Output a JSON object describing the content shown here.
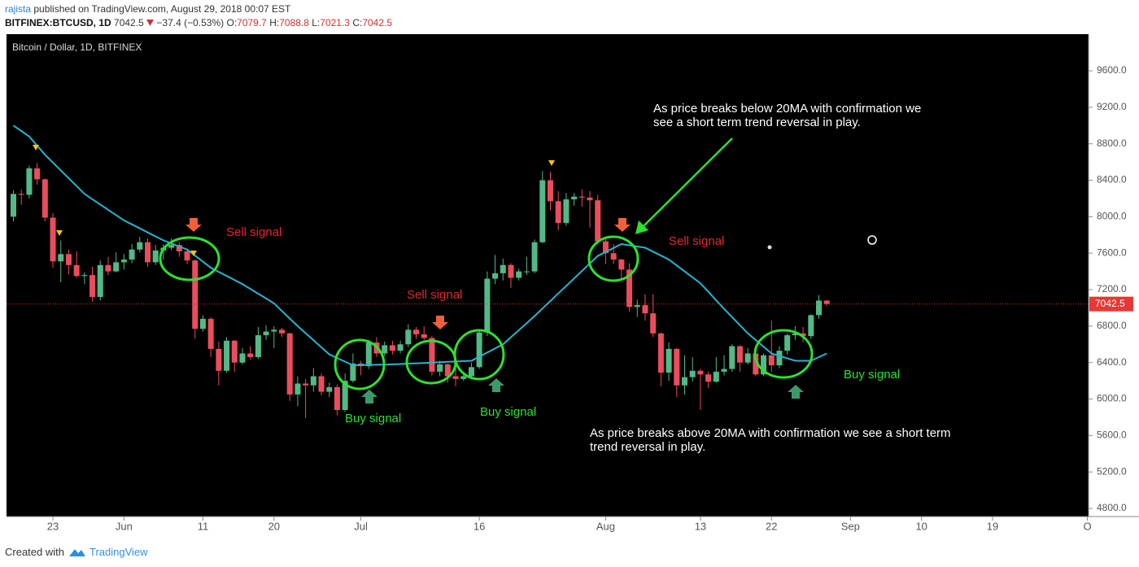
{
  "header": {
    "author": "rajista",
    "published": "published on TradingView.com, August 29, 2018 00:07 EST",
    "symbol": "BITFINEX:BTCUSD, 1D",
    "change": "−37.4 (−0.53%)",
    "labels": {
      "o": "O:",
      "h": "H:",
      "l": "L:",
      "c": "C:"
    }
  },
  "chart_data": {
    "type": "candlestick",
    "title": "Bitcoin / Dollar, 1D, BITFINEX",
    "up_color": "#53b987",
    "down_color": "#eb4d5c",
    "background": "#000000",
    "categories": [
      null,
      null,
      null,
      null,
      null,
      "23",
      null,
      null,
      null,
      null,
      null,
      null,
      null,
      null,
      "Jun",
      null,
      null,
      null,
      null,
      null,
      null,
      null,
      null,
      null,
      "11",
      null,
      null,
      null,
      null,
      null,
      null,
      null,
      null,
      "20",
      null,
      null,
      null,
      null,
      null,
      null,
      null,
      null,
      null,
      null,
      "Jul",
      null,
      null,
      null,
      null,
      null,
      null,
      null,
      null,
      null,
      null,
      null,
      null,
      null,
      null,
      "16",
      null,
      null,
      null,
      null,
      null,
      null,
      null,
      null,
      null,
      null,
      null,
      null,
      null,
      null,
      null,
      "Aug",
      null,
      null,
      null,
      null,
      null,
      null,
      null,
      null,
      null,
      null,
      null,
      "13",
      null,
      null,
      null,
      null,
      null,
      null,
      null,
      null,
      "22",
      null,
      null,
      null,
      null,
      null,
      null,
      null,
      null,
      null,
      "Sep",
      null,
      null,
      null,
      null,
      null,
      null,
      null,
      null,
      "10",
      null,
      null,
      null,
      null,
      null,
      null,
      null,
      null,
      "19",
      null,
      null,
      null,
      null,
      null,
      null,
      null,
      null,
      null,
      null,
      null,
      "O"
    ],
    "open": [
      8000,
      8250,
      8240,
      8530,
      8410,
      7990,
      7510,
      7590,
      7470,
      7350,
      7360,
      7120,
      7470,
      7400,
      7500,
      7530,
      7640,
      7720,
      7500,
      7630,
      7660,
      7690,
      7620,
      7520,
      6770,
      6880,
      6550,
      6310,
      6640,
      6400,
      6500,
      6460,
      6700,
      6740,
      6760,
      6720,
      6050,
      6170,
      6150,
      6250,
      6080,
      6130,
      5880,
      6200,
      6390,
      6360,
      6620,
      6500,
      6590,
      6530,
      6600,
      6760,
      6710,
      6670,
      6300,
      6380,
      6250,
      6220,
      6250,
      6350,
      6730,
      7320,
      7380,
      7470,
      7330,
      7400,
      7400,
      7720,
      8400,
      8170,
      7930,
      8190,
      8220,
      8210,
      8180,
      7730,
      7600,
      7530,
      7420,
      7010,
      7030,
      6940,
      6720,
      6290,
      6550,
      6150,
      6240,
      6310,
      6270,
      6190,
      6300,
      6330,
      6580,
      6400,
      6500,
      6270,
      6480,
      6370,
      6530,
      6700,
      6720,
      6690,
      6920,
      7079.7,
      null,
      null,
      null,
      null,
      null,
      null,
      null,
      null,
      null,
      null,
      null,
      null,
      null,
      null,
      null,
      null,
      null,
      null,
      null,
      null,
      null,
      null,
      null,
      null,
      null,
      null,
      null,
      null,
      null,
      null,
      null,
      null,
      null
    ],
    "high": [
      8290,
      8300,
      8560,
      8590,
      8420,
      8040,
      7740,
      7640,
      7620,
      7390,
      7450,
      7520,
      7560,
      7610,
      7590,
      7700,
      7780,
      7760,
      7690,
      7700,
      7760,
      7720,
      7640,
      7530,
      6920,
      6900,
      6630,
      6680,
      6650,
      6560,
      6580,
      6790,
      6810,
      6800,
      6780,
      6730,
      6250,
      6220,
      6340,
      6280,
      6180,
      6160,
      6280,
      6500,
      6420,
      6650,
      6680,
      6630,
      6640,
      6640,
      6820,
      6790,
      6800,
      6690,
      6420,
      6390,
      6340,
      6280,
      6400,
      6760,
      7400,
      7580,
      7540,
      7490,
      7430,
      7560,
      7750,
      8500,
      8490,
      8280,
      8260,
      8260,
      8300,
      8280,
      8240,
      7770,
      7700,
      7540,
      7490,
      7090,
      7150,
      7150,
      6730,
      6620,
      6560,
      6480,
      6460,
      6330,
      6300,
      6460,
      6480,
      6600,
      6590,
      6560,
      6520,
      6500,
      6860,
      6580,
      6720,
      6800,
      6790,
      6930,
      7140,
      7088.8,
      null,
      null,
      null,
      null,
      null,
      null,
      null,
      null,
      null,
      null,
      null,
      null,
      null,
      null,
      null,
      null,
      null,
      null,
      null,
      null,
      null,
      null,
      null,
      null,
      null,
      null,
      null,
      null,
      null,
      null,
      null,
      null,
      null
    ],
    "low": [
      7950,
      8130,
      8200,
      8350,
      7950,
      7440,
      7280,
      7370,
      7330,
      7260,
      7070,
      7080,
      7360,
      7390,
      7420,
      7490,
      7610,
      7450,
      7470,
      7530,
      7630,
      7560,
      7480,
      6660,
      6740,
      6460,
      6150,
      6290,
      6300,
      6380,
      6430,
      6440,
      6650,
      6560,
      6680,
      5980,
      5920,
      5790,
      6080,
      6040,
      6020,
      5820,
      5860,
      6180,
      6260,
      6330,
      6460,
      6470,
      6490,
      6500,
      6570,
      6660,
      6650,
      6260,
      6250,
      6180,
      6140,
      6200,
      6230,
      6330,
      6690,
      7260,
      7300,
      7220,
      7300,
      7360,
      7380,
      7710,
      8070,
      7850,
      7900,
      8120,
      8110,
      7880,
      7700,
      7480,
      7480,
      7320,
      6960,
      6900,
      6860,
      6680,
      6140,
      6200,
      6020,
      6050,
      6190,
      5880,
      6120,
      6180,
      6260,
      6300,
      6300,
      6380,
      6250,
      6250,
      6300,
      6340,
      6490,
      6650,
      6620,
      6660,
      6880,
      7021.3,
      null,
      null,
      null,
      null,
      null,
      null,
      null,
      null,
      null,
      null,
      null,
      null,
      null,
      null,
      null,
      null,
      null,
      null,
      null,
      null,
      null,
      null,
      null,
      null,
      null,
      null,
      null,
      null,
      null,
      null,
      null,
      null,
      null
    ],
    "close": [
      8250,
      8240,
      8530,
      8410,
      7990,
      7510,
      7590,
      7470,
      7350,
      7360,
      7120,
      7470,
      7400,
      7500,
      7530,
      7640,
      7720,
      7500,
      7630,
      7660,
      7690,
      7620,
      7520,
      6770,
      6880,
      6550,
      6310,
      6640,
      6400,
      6500,
      6460,
      6700,
      6740,
      6760,
      6720,
      6050,
      6170,
      6150,
      6250,
      6080,
      6130,
      5880,
      6200,
      6390,
      6360,
      6620,
      6500,
      6590,
      6530,
      6600,
      6760,
      6710,
      6670,
      6300,
      6380,
      6250,
      6220,
      6250,
      6350,
      6730,
      7320,
      7380,
      7470,
      7330,
      7400,
      7400,
      7720,
      8400,
      8170,
      7930,
      8190,
      8220,
      8210,
      8180,
      7730,
      7600,
      7530,
      7420,
      7010,
      7030,
      6940,
      6720,
      6290,
      6550,
      6150,
      6240,
      6310,
      6270,
      6190,
      6300,
      6330,
      6580,
      6400,
      6500,
      6270,
      6480,
      6370,
      6530,
      6700,
      6720,
      6690,
      6920,
      7080,
      7042.5,
      null,
      null,
      null,
      null,
      null,
      null,
      null,
      null,
      null,
      null,
      null,
      null,
      null,
      null,
      null,
      null,
      null,
      null,
      null,
      null,
      null,
      null,
      null,
      null,
      null,
      null,
      null,
      null,
      null,
      null,
      null,
      null,
      null
    ],
    "moving_average": {
      "color": "#2ab3cf",
      "values": [
        9000,
        8940,
        8880,
        8780,
        8680,
        8594,
        8508,
        8422,
        8336,
        8250,
        8192,
        8134,
        8076,
        8018,
        7960,
        7916,
        7872,
        7828,
        7784,
        7740,
        7707,
        7673,
        7640,
        7573,
        7507,
        7440,
        7395,
        7350,
        7305,
        7260,
        7208,
        7155,
        7103,
        7050,
        6967,
        6883,
        6800,
        6723,
        6645,
        6568,
        6490,
        6450,
        6410,
        6370,
        6372,
        6374,
        6376,
        6378,
        6380,
        6384,
        6388,
        6392,
        6396,
        6400,
        6404,
        6408,
        6412,
        6416,
        6420,
        6465,
        6510,
        6555,
        6600,
        6678,
        6755,
        6833,
        6910,
        6993,
        7075,
        7158,
        7240,
        7323,
        7405,
        7488,
        7570,
        7613,
        7657,
        7700,
        7687,
        7673,
        7660,
        7617,
        7573,
        7530,
        7465,
        7400,
        7335,
        7270,
        7177,
        7083,
        6990,
        6900,
        6810,
        6720,
        6647,
        6573,
        6500,
        6473,
        6447,
        6420,
        6420,
        6420,
        6460,
        6500,
        null,
        null,
        null,
        null,
        null,
        null,
        null,
        null,
        null,
        null,
        null,
        null,
        null,
        null,
        null,
        null,
        null,
        null,
        null,
        null,
        null,
        null,
        null,
        null,
        null,
        null,
        null,
        null,
        null,
        null,
        null,
        null,
        null
      ]
    },
    "last_price_color": "#e53935",
    "ylim": [
      4711,
      10002
    ],
    "yticks": [
      {
        "value": 4800,
        "label": "4800.0"
      },
      {
        "value": 5200,
        "label": "5200.0"
      },
      {
        "value": 5600,
        "label": "5600.0"
      },
      {
        "value": 6000,
        "label": "6000.0"
      },
      {
        "value": 6400,
        "label": "6400.0"
      },
      {
        "value": 6800,
        "label": "6800.0"
      },
      {
        "value": 7200,
        "label": "7200.0"
      },
      {
        "value": 7600,
        "label": "7600.0"
      },
      {
        "value": 8000,
        "label": "8000.0"
      },
      {
        "value": 8400,
        "label": "8400.0"
      },
      {
        "value": 8800,
        "label": "8800.0"
      },
      {
        "value": 9200,
        "label": "9200.0"
      },
      {
        "value": 9600,
        "label": "9600.0"
      }
    ],
    "grid": false,
    "annotations": [
      {
        "lines": [
          "Sell signal"
        ],
        "color": "#e8262c"
      },
      {
        "lines": [
          "Sell signal"
        ],
        "color": "#e8262c"
      },
      {
        "lines": [
          "Sell signal"
        ],
        "color": "#e8262c"
      },
      {
        "lines": [
          "Buy signal"
        ],
        "color": "#2fe02f"
      },
      {
        "lines": [
          "Buy signal"
        ],
        "color": "#2fe02f"
      },
      {
        "lines": [
          "Buy signal"
        ],
        "color": "#2fe02f"
      },
      {
        "lines": [
          "As price breaks below 20MA with confirmation we",
          "see a short term trend reversal in play."
        ],
        "color": "#ffffff"
      },
      {
        "lines": [
          "As price breaks above 20MA with confirmation we see a short term",
          "trend reversal in play."
        ],
        "color": "#ffffff"
      }
    ]
  },
  "footer": {
    "created": "Created with",
    "brand": "TradingView"
  }
}
